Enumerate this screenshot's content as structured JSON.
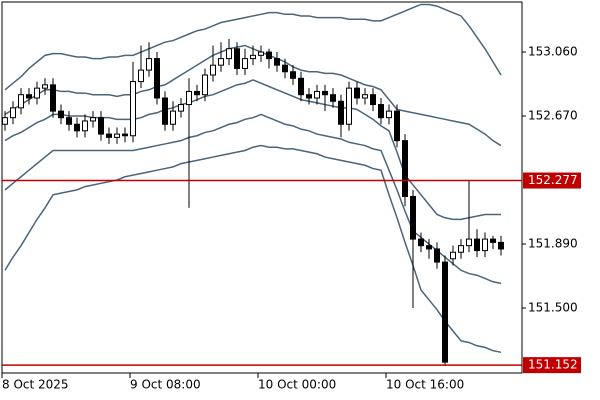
{
  "chart_data": {
    "type": "candlestick",
    "categories": [
      "8 Oct 2025",
      null,
      null,
      null,
      null,
      null,
      null,
      null,
      null,
      null,
      null,
      null,
      null,
      null,
      null,
      null,
      "9 Oct 08:00",
      null,
      null,
      null,
      null,
      null,
      null,
      null,
      null,
      null,
      null,
      null,
      null,
      null,
      null,
      null,
      "10 Oct 00:00",
      null,
      null,
      null,
      null,
      null,
      null,
      null,
      null,
      null,
      null,
      null,
      null,
      null,
      null,
      null,
      "10 Oct 16:00",
      null,
      null,
      null,
      null,
      null,
      null,
      null,
      null,
      null,
      null,
      null,
      null,
      null,
      null
    ],
    "open": [
      152.62,
      152.66,
      152.72,
      152.8,
      152.78,
      152.84,
      152.86,
      152.7,
      152.66,
      152.62,
      152.58,
      152.64,
      152.66,
      152.56,
      152.54,
      152.56,
      152.55,
      152.88,
      152.95,
      153.02,
      152.78,
      152.62,
      152.7,
      152.74,
      152.82,
      152.8,
      152.92,
      152.98,
      153.02,
      153.08,
      152.96,
      153.02,
      153.04,
      153.06,
      153.02,
      152.98,
      152.94,
      152.9,
      152.8,
      152.78,
      152.82,
      152.8,
      152.76,
      152.62,
      152.84,
      152.78,
      152.8,
      152.74,
      152.66,
      152.7,
      152.52,
      152.18,
      151.92,
      151.88,
      151.86,
      151.78,
      151.8,
      151.84,
      151.88,
      151.92,
      151.85,
      151.92,
      151.9
    ],
    "high": [
      152.7,
      152.76,
      152.84,
      152.84,
      152.88,
      152.9,
      152.9,
      152.74,
      152.7,
      152.66,
      152.68,
      152.7,
      152.7,
      152.6,
      152.6,
      152.6,
      153.0,
      153.1,
      153.12,
      153.06,
      152.82,
      152.76,
      152.78,
      152.9,
      152.86,
      152.96,
      153.1,
      153.12,
      153.14,
      153.12,
      153.08,
      153.1,
      153.1,
      153.08,
      153.06,
      153.02,
      152.98,
      152.94,
      152.84,
      152.86,
      152.86,
      152.84,
      152.8,
      152.88,
      152.88,
      152.84,
      152.84,
      152.78,
      152.74,
      152.74,
      152.56,
      152.22,
      151.96,
      151.92,
      151.9,
      151.82,
      151.88,
      151.92,
      152.28,
      151.98,
      151.96,
      151.94,
      151.94
    ],
    "low": [
      152.58,
      152.62,
      152.68,
      152.74,
      152.74,
      152.8,
      152.66,
      152.62,
      152.58,
      152.54,
      152.54,
      152.6,
      152.52,
      152.5,
      152.5,
      152.51,
      152.51,
      152.84,
      152.91,
      152.74,
      152.58,
      152.58,
      152.66,
      152.11,
      152.76,
      152.76,
      152.88,
      152.94,
      152.98,
      152.92,
      152.92,
      152.98,
      153.0,
      152.96,
      152.94,
      152.9,
      152.86,
      152.76,
      152.74,
      152.74,
      152.7,
      152.72,
      152.54,
      152.58,
      152.74,
      152.74,
      152.7,
      152.62,
      152.62,
      152.48,
      152.12,
      151.5,
      151.84,
      151.8,
      151.74,
      151.15,
      151.76,
      151.8,
      151.84,
      151.81,
      151.81,
      151.86,
      151.82
    ],
    "close": [
      152.66,
      152.72,
      152.8,
      152.78,
      152.84,
      152.86,
      152.7,
      152.66,
      152.62,
      152.58,
      152.64,
      152.66,
      152.56,
      152.54,
      152.56,
      152.55,
      152.88,
      152.95,
      153.02,
      152.78,
      152.62,
      152.7,
      152.74,
      152.82,
      152.8,
      152.92,
      152.98,
      153.02,
      153.08,
      152.96,
      153.02,
      153.04,
      153.06,
      153.02,
      152.98,
      152.94,
      152.9,
      152.8,
      152.78,
      152.82,
      152.8,
      152.76,
      152.62,
      152.84,
      152.78,
      152.8,
      152.74,
      152.66,
      152.7,
      152.52,
      152.18,
      151.92,
      151.88,
      151.86,
      151.78,
      151.17,
      151.84,
      151.88,
      151.92,
      151.85,
      151.92,
      151.9,
      151.86
    ],
    "candle_color": "#000000",
    "series": [
      {
        "color": "#4a6579",
        "values": [
          152.83,
          152.87,
          152.91,
          152.96,
          153.0,
          153.04,
          153.05,
          153.05,
          153.04,
          153.03,
          153.03,
          153.02,
          153.02,
          153.03,
          153.03,
          153.04,
          153.04,
          153.06,
          153.08,
          153.1,
          153.12,
          153.13,
          153.15,
          153.17,
          153.19,
          153.2,
          153.22,
          153.24,
          153.25,
          153.26,
          153.27,
          153.28,
          153.29,
          153.3,
          153.3,
          153.29,
          153.29,
          153.28,
          153.28,
          153.27,
          153.27,
          153.27,
          153.27,
          153.26,
          153.26,
          153.26,
          153.25,
          153.25,
          153.27,
          153.29,
          153.31,
          153.33,
          153.35,
          153.35,
          153.34,
          153.32,
          153.3,
          153.28,
          153.22,
          153.15,
          153.08,
          153.0,
          152.92
        ]
      },
      {
        "color": "#4a6579",
        "values": [
          152.68,
          152.71,
          152.74,
          152.77,
          152.8,
          152.83,
          152.83,
          152.82,
          152.82,
          152.81,
          152.81,
          152.8,
          152.8,
          152.8,
          152.79,
          152.8,
          152.8,
          152.82,
          152.83,
          152.85,
          152.86,
          152.89,
          152.92,
          152.95,
          152.98,
          153.01,
          153.04,
          153.06,
          153.08,
          153.09,
          153.1,
          153.08,
          153.06,
          153.04,
          153.02,
          153.0,
          152.97,
          152.95,
          152.94,
          152.94,
          152.93,
          152.93,
          152.92,
          152.9,
          152.88,
          152.86,
          152.85,
          152.83,
          152.77,
          152.71,
          152.7,
          152.69,
          152.68,
          152.67,
          152.66,
          152.65,
          152.64,
          152.63,
          152.62,
          152.59,
          152.56,
          152.52,
          152.49
        ]
      },
      {
        "color": "#4a6579",
        "values": [
          152.52,
          152.55,
          152.57,
          152.6,
          152.63,
          152.65,
          152.68,
          152.68,
          152.67,
          152.67,
          152.67,
          152.66,
          152.66,
          152.66,
          152.65,
          152.65,
          152.65,
          152.66,
          152.68,
          152.69,
          152.71,
          152.72,
          152.74,
          152.75,
          152.77,
          152.79,
          152.8,
          152.82,
          152.84,
          152.86,
          152.87,
          152.89,
          152.87,
          152.85,
          152.83,
          152.81,
          152.79,
          152.77,
          152.76,
          152.75,
          152.74,
          152.73,
          152.72,
          152.72,
          152.71,
          152.68,
          152.65,
          152.61,
          152.58,
          152.45,
          152.31,
          152.25,
          152.19,
          152.13,
          152.07,
          152.05,
          152.04,
          152.04,
          152.05,
          152.06,
          152.07,
          152.07,
          152.07
        ]
      },
      {
        "color": "#4a6579",
        "values": [
          152.22,
          152.26,
          152.3,
          152.34,
          152.38,
          152.42,
          152.46,
          152.46,
          152.46,
          152.46,
          152.46,
          152.46,
          152.46,
          152.46,
          152.46,
          152.46,
          152.46,
          152.47,
          152.48,
          152.49,
          152.5,
          152.51,
          152.52,
          152.54,
          152.55,
          152.57,
          152.58,
          152.6,
          152.62,
          152.63,
          152.65,
          152.66,
          152.68,
          152.66,
          152.64,
          152.62,
          152.61,
          152.59,
          152.58,
          152.56,
          152.55,
          152.54,
          152.53,
          152.51,
          152.5,
          152.49,
          152.47,
          152.46,
          152.34,
          152.22,
          152.09,
          151.97,
          151.93,
          151.89,
          151.85,
          151.81,
          151.77,
          151.73,
          151.71,
          151.7,
          151.68,
          151.66,
          151.65
        ]
      },
      {
        "color": "#4a6579",
        "values": [
          151.73,
          151.81,
          151.88,
          151.96,
          152.04,
          152.11,
          152.19,
          152.2,
          152.21,
          152.22,
          152.24,
          152.25,
          152.26,
          152.27,
          152.28,
          152.3,
          152.31,
          152.32,
          152.33,
          152.34,
          152.35,
          152.36,
          152.38,
          152.39,
          152.4,
          152.41,
          152.42,
          152.43,
          152.44,
          152.45,
          152.46,
          152.48,
          152.49,
          152.48,
          152.48,
          152.47,
          152.47,
          152.46,
          152.45,
          152.44,
          152.42,
          152.41,
          152.4,
          152.39,
          152.38,
          152.37,
          152.35,
          152.34,
          152.19,
          152.05,
          151.9,
          151.76,
          151.61,
          151.55,
          151.49,
          151.42,
          151.36,
          151.3,
          151.29,
          151.27,
          151.26,
          151.24,
          151.23
        ]
      }
    ],
    "ylim": [
      151.104,
      153.365
    ],
    "yticks": [
      {
        "value": 153.06,
        "label": "153.060"
      },
      {
        "value": 152.67,
        "label": "152.670"
      },
      {
        "value": 151.89,
        "label": "151.890"
      },
      {
        "value": 151.5,
        "label": "151.500"
      }
    ],
    "hlines": [
      {
        "value": 152.277,
        "color": "#c00000"
      },
      {
        "value": 151.152,
        "color": "#c00000"
      }
    ]
  }
}
